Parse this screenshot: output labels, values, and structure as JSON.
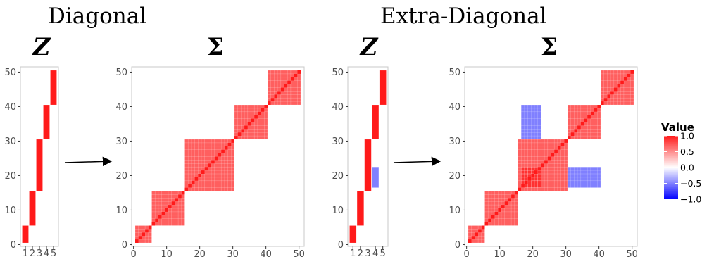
{
  "sections": [
    {
      "heading": "Diagonal"
    },
    {
      "heading": "Extra-Diagonal"
    }
  ],
  "colors": {
    "positive": "#ff1a1a",
    "mid": "#ffffff",
    "negative": "#0000ff",
    "panel_border": "#c8c8c8",
    "tick_text": "#4d4d4d"
  },
  "legend": {
    "title": "Value",
    "ticks": [
      1.0,
      0.5,
      0.0,
      -0.5,
      -1.0
    ],
    "tick_labels": [
      "1.0",
      "0.5",
      "0.0",
      "−0.5",
      "−1.0"
    ],
    "range": [
      -1,
      1
    ]
  },
  "chart_data": [
    {
      "type": "heatmap",
      "title": "Z",
      "section": "Diagonal",
      "x_categories": [
        1,
        2,
        3,
        4,
        5
      ],
      "x_tick_labels": [
        "1",
        "2",
        "3",
        "4",
        "5"
      ],
      "ylim": [
        1,
        50
      ],
      "y_ticks": [
        0,
        10,
        20,
        30,
        40,
        50
      ],
      "cells": [
        {
          "col": 1,
          "rows": [
            1,
            5
          ],
          "value": 1
        },
        {
          "col": 2,
          "rows": [
            6,
            15
          ],
          "value": 1
        },
        {
          "col": 3,
          "rows": [
            16,
            30
          ],
          "value": 1
        },
        {
          "col": 4,
          "rows": [
            31,
            40
          ],
          "value": 1
        },
        {
          "col": 5,
          "rows": [
            41,
            50
          ],
          "value": 1
        }
      ]
    },
    {
      "type": "heatmap",
      "title": "Σ",
      "section": "Diagonal",
      "xlim": [
        1,
        50
      ],
      "ylim": [
        1,
        50
      ],
      "x_ticks": [
        0,
        10,
        20,
        30,
        40,
        50
      ],
      "y_ticks": [
        0,
        10,
        20,
        30,
        40,
        50
      ],
      "diagonal_value": 1,
      "blocks": [
        {
          "rows": [
            1,
            5
          ],
          "cols": [
            1,
            5
          ],
          "value": 0.7
        },
        {
          "rows": [
            6,
            15
          ],
          "cols": [
            6,
            15
          ],
          "value": 0.7
        },
        {
          "rows": [
            16,
            30
          ],
          "cols": [
            16,
            30
          ],
          "value": 0.7
        },
        {
          "rows": [
            31,
            40
          ],
          "cols": [
            31,
            40
          ],
          "value": 0.7
        },
        {
          "rows": [
            41,
            50
          ],
          "cols": [
            41,
            50
          ],
          "value": 0.7
        }
      ]
    },
    {
      "type": "heatmap",
      "title": "Z",
      "section": "Extra-Diagonal",
      "x_categories": [
        1,
        2,
        3,
        4,
        5
      ],
      "x_tick_labels": [
        "1",
        "2",
        "3",
        "4",
        "5"
      ],
      "ylim": [
        1,
        50
      ],
      "y_ticks": [
        0,
        10,
        20,
        30,
        40,
        50
      ],
      "cells": [
        {
          "col": 1,
          "rows": [
            1,
            5
          ],
          "value": 1
        },
        {
          "col": 2,
          "rows": [
            6,
            15
          ],
          "value": 1
        },
        {
          "col": 3,
          "rows": [
            16,
            30
          ],
          "value": 1
        },
        {
          "col": 4,
          "rows": [
            31,
            40
          ],
          "value": 1
        },
        {
          "col": 5,
          "rows": [
            41,
            50
          ],
          "value": 1
        },
        {
          "col": 4,
          "rows": [
            17,
            22
          ],
          "value": -0.5
        }
      ]
    },
    {
      "type": "heatmap",
      "title": "Σ",
      "section": "Extra-Diagonal",
      "xlim": [
        1,
        50
      ],
      "ylim": [
        1,
        50
      ],
      "x_ticks": [
        0,
        10,
        20,
        30,
        40,
        50
      ],
      "y_ticks": [
        0,
        10,
        20,
        30,
        40,
        50
      ],
      "diagonal_value": 1,
      "blocks": [
        {
          "rows": [
            1,
            5
          ],
          "cols": [
            1,
            5
          ],
          "value": 0.7
        },
        {
          "rows": [
            6,
            15
          ],
          "cols": [
            6,
            15
          ],
          "value": 0.7
        },
        {
          "rows": [
            16,
            30
          ],
          "cols": [
            16,
            30
          ],
          "value": 0.7
        },
        {
          "rows": [
            31,
            40
          ],
          "cols": [
            31,
            40
          ],
          "value": 0.7
        },
        {
          "rows": [
            41,
            50
          ],
          "cols": [
            41,
            50
          ],
          "value": 0.7
        },
        {
          "rows": [
            17,
            22
          ],
          "cols": [
            17,
            22
          ],
          "value": 0.9
        },
        {
          "rows": [
            31,
            40
          ],
          "cols": [
            17,
            22
          ],
          "value": -0.5
        },
        {
          "rows": [
            17,
            22
          ],
          "cols": [
            31,
            40
          ],
          "value": -0.5
        }
      ]
    }
  ]
}
